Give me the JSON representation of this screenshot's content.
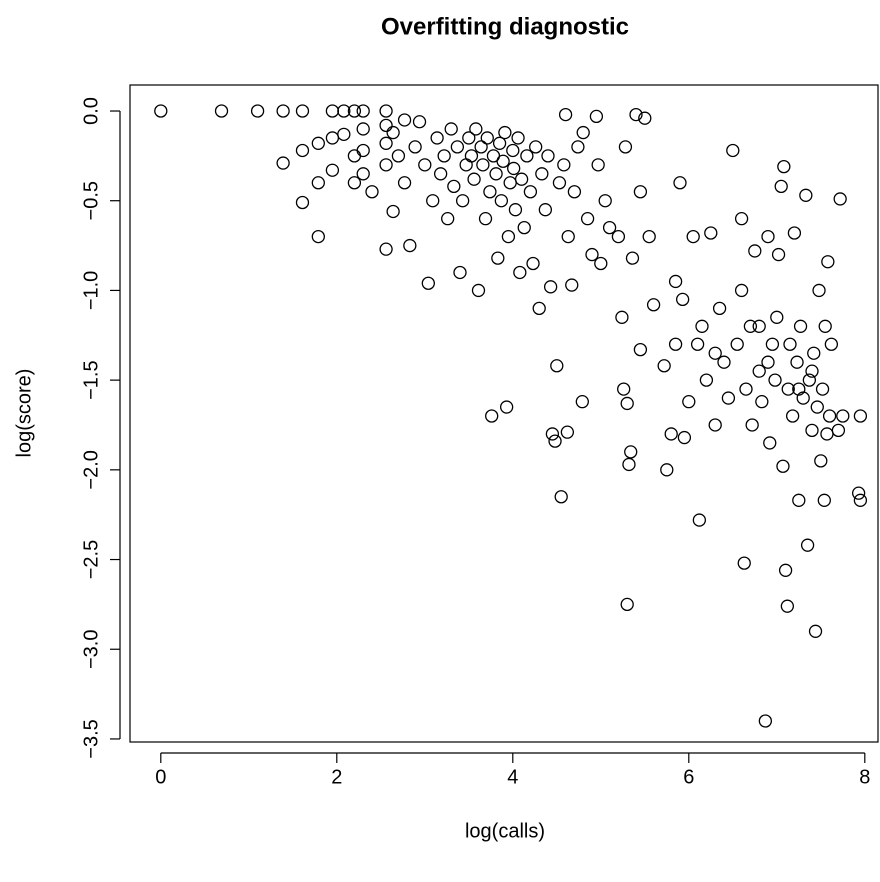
{
  "chart_data": {
    "type": "scatter",
    "title": "Overfitting diagnostic",
    "x_label": "log(calls)",
    "y_label": "log(score)",
    "xlim": [
      -0.35,
      8.15
    ],
    "ylim": [
      -3.517,
      0.145
    ],
    "xticks": [
      0,
      2,
      4,
      6,
      8
    ],
    "yticks": [
      {
        "value": 0,
        "label": "0.0"
      },
      {
        "value": -0.5,
        "label": "−0.5"
      },
      {
        "value": -1,
        "label": "−1.0"
      },
      {
        "value": -1.5,
        "label": "−1.5"
      },
      {
        "value": -2,
        "label": "−2.0"
      },
      {
        "value": -2.5,
        "label": "−2.5"
      },
      {
        "value": -3,
        "label": "−3.0"
      },
      {
        "value": -3.5,
        "label": "−3.5"
      }
    ],
    "color": "#000000",
    "x": [
      0,
      0.69,
      1.1,
      1.39,
      1.39,
      1.61,
      1.61,
      1.61,
      1.79,
      1.79,
      1.79,
      1.95,
      1.95,
      1.95,
      2.08,
      2.08,
      2.2,
      2.2,
      2.2,
      2.3,
      2.3,
      2.3,
      2.3,
      2.4,
      2.56,
      2.56,
      2.56,
      2.56,
      2.56,
      2.64,
      2.64,
      2.7,
      2.77,
      2.77,
      2.83,
      2.89,
      2.94,
      3.0,
      3.04,
      3.09,
      3.14,
      3.18,
      3.22,
      3.26,
      3.3,
      3.33,
      3.37,
      3.4,
      3.43,
      3.47,
      3.5,
      3.53,
      3.56,
      3.58,
      3.61,
      3.64,
      3.66,
      3.69,
      3.71,
      3.74,
      3.76,
      3.78,
      3.81,
      3.83,
      3.85,
      3.87,
      3.89,
      3.91,
      3.93,
      3.95,
      3.97,
      4.0,
      4.01,
      4.03,
      4.06,
      4.08,
      4.1,
      4.13,
      4.16,
      4.2,
      4.23,
      4.26,
      4.3,
      4.33,
      4.37,
      4.4,
      4.43,
      4.45,
      4.48,
      4.5,
      4.53,
      4.55,
      4.58,
      4.62,
      4.6,
      4.63,
      4.67,
      4.7,
      4.74,
      4.79,
      4.8,
      4.85,
      4.9,
      4.95,
      4.97,
      5.0,
      5.05,
      5.1,
      5.2,
      5.24,
      5.26,
      5.28,
      5.3,
      5.3,
      5.32,
      5.34,
      5.36,
      5.4,
      5.45,
      5.45,
      5.5,
      5.55,
      5.6,
      5.72,
      5.75,
      5.8,
      5.85,
      5.9,
      5.93,
      5.95,
      6.0,
      6.05,
      6.1,
      6.12,
      6.15,
      6.2,
      6.25,
      6.3,
      6.35,
      6.4,
      6.45,
      6.5,
      6.55,
      6.6,
      6.63,
      6.65,
      6.7,
      6.72,
      6.75,
      6.8,
      6.83,
      6.87,
      6.9,
      6.92,
      6.95,
      6.98,
      7.0,
      7.02,
      7.05,
      7.07,
      7.08,
      7.1,
      7.12,
      7.13,
      7.15,
      7.18,
      7.2,
      7.23,
      7.25,
      7.27,
      7.3,
      7.33,
      7.35,
      7.37,
      7.4,
      7.42,
      7.44,
      7.46,
      7.48,
      7.5,
      7.52,
      7.54,
      7.55,
      7.57,
      7.58,
      7.6,
      7.62,
      7.7,
      7.72,
      7.75,
      7.93,
      7.95,
      7.95,
      6.6,
      6.9,
      7.25,
      7.4,
      6.3,
      5.85,
      6.8
    ],
    "values": [
      0,
      0,
      0,
      0,
      -0.29,
      0,
      -0.51,
      -0.22,
      -0.4,
      -0.7,
      -0.18,
      0,
      -0.15,
      -0.33,
      0,
      -0.13,
      0,
      -0.25,
      -0.4,
      0,
      -0.1,
      -0.22,
      -0.35,
      -0.45,
      0,
      -0.08,
      -0.18,
      -0.3,
      -0.77,
      -0.56,
      -0.12,
      -0.25,
      -0.05,
      -0.4,
      -0.75,
      -0.2,
      -0.06,
      -0.3,
      -0.96,
      -0.5,
      -0.15,
      -0.35,
      -0.25,
      -0.6,
      -0.1,
      -0.42,
      -0.2,
      -0.9,
      -0.5,
      -0.3,
      -0.15,
      -0.25,
      -0.38,
      -0.1,
      -1.0,
      -0.2,
      -0.3,
      -0.6,
      -0.15,
      -0.45,
      -1.7,
      -0.25,
      -0.35,
      -0.82,
      -0.18,
      -0.5,
      -0.28,
      -0.12,
      -1.65,
      -0.7,
      -0.4,
      -0.22,
      -0.32,
      -0.55,
      -0.15,
      -0.9,
      -0.38,
      -0.65,
      -0.25,
      -0.45,
      -0.85,
      -0.2,
      -1.1,
      -0.35,
      -0.55,
      -0.25,
      -0.98,
      -1.8,
      -1.84,
      -1.42,
      -0.4,
      -2.15,
      -0.3,
      -1.79,
      -0.02,
      -0.7,
      -0.97,
      -0.45,
      -0.2,
      -1.62,
      -0.12,
      -0.6,
      -0.8,
      -0.03,
      -0.3,
      -0.85,
      -0.5,
      -0.65,
      -0.7,
      -1.15,
      -1.55,
      -0.2,
      -1.63,
      -2.75,
      -1.97,
      -1.9,
      -0.82,
      -0.02,
      -1.33,
      -0.45,
      -0.04,
      -0.7,
      -1.08,
      -1.42,
      -2.0,
      -1.8,
      -0.95,
      -0.4,
      -1.05,
      -1.82,
      -1.62,
      -0.7,
      -1.3,
      -2.28,
      -1.2,
      -1.5,
      -0.68,
      -1.75,
      -1.1,
      -1.4,
      -1.6,
      -0.22,
      -1.3,
      -0.6,
      -2.52,
      -1.55,
      -1.2,
      -1.75,
      -0.78,
      -1.45,
      -1.62,
      -3.4,
      -0.7,
      -1.85,
      -1.3,
      -1.5,
      -1.15,
      -0.8,
      -0.42,
      -1.98,
      -0.31,
      -2.56,
      -2.76,
      -1.55,
      -1.3,
      -1.7,
      -0.68,
      -1.4,
      -2.17,
      -1.2,
      -1.6,
      -0.47,
      -2.42,
      -1.5,
      -1.78,
      -1.35,
      -2.9,
      -1.65,
      -1.0,
      -1.95,
      -1.55,
      -2.17,
      -1.2,
      -1.8,
      -0.84,
      -1.7,
      -1.3,
      -1.78,
      -0.49,
      -1.7,
      -2.13,
      -1.7,
      -2.17,
      -1.0,
      -1.4,
      -1.55,
      -1.45,
      -1.35,
      -1.3,
      -1.2
    ]
  }
}
